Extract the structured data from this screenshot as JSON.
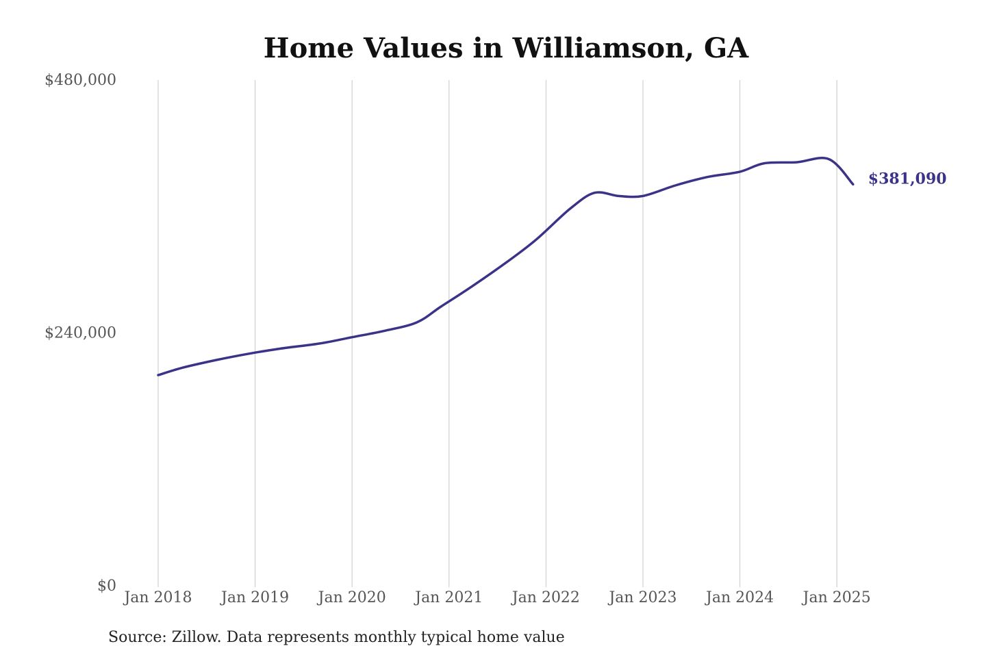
{
  "colors": {
    "series": "#3a3387",
    "grid": "#c8c8c8",
    "tick_text": "#555555",
    "title": "#111111",
    "background": "#ffffff"
  },
  "chart_data": {
    "type": "line",
    "title": "Home Values in Williamson, GA",
    "xlabel": "",
    "ylabel": "",
    "ylim": [
      0,
      480000
    ],
    "y_ticks": [
      0,
      240000,
      480000
    ],
    "y_tick_labels": [
      "$0",
      "$240,000",
      "$480,000"
    ],
    "x_ticks": [
      "2018-01",
      "2019-01",
      "2020-01",
      "2021-01",
      "2022-01",
      "2023-01",
      "2024-01",
      "2025-01"
    ],
    "x_tick_labels": [
      "Jan 2018",
      "Jan 2019",
      "Jan 2020",
      "Jan 2021",
      "Jan 2022",
      "Jan 2023",
      "Jan 2024",
      "Jan 2025"
    ],
    "grid": "vertical",
    "end_label": "$381,090",
    "source_note": "Source: Zillow. Data represents monthly typical home value",
    "series": [
      {
        "x": [
          "2018-01",
          "2018-04",
          "2018-08",
          "2018-12",
          "2019-04",
          "2019-09",
          "2020-01",
          "2020-05",
          "2020-09",
          "2020-12",
          "2021-04",
          "2021-09",
          "2021-12",
          "2022-04",
          "2022-07",
          "2022-10",
          "2023-01",
          "2023-05",
          "2023-09",
          "2024-01",
          "2024-04",
          "2024-08",
          "2024-12",
          "2025-03"
        ],
        "values": [
          200000,
          207000,
          214000,
          220000,
          225000,
          230000,
          236000,
          242000,
          250000,
          265000,
          285000,
          312000,
          330000,
          358000,
          373000,
          370000,
          370000,
          380000,
          388000,
          393000,
          401000,
          402000,
          405000,
          381090
        ]
      }
    ]
  }
}
